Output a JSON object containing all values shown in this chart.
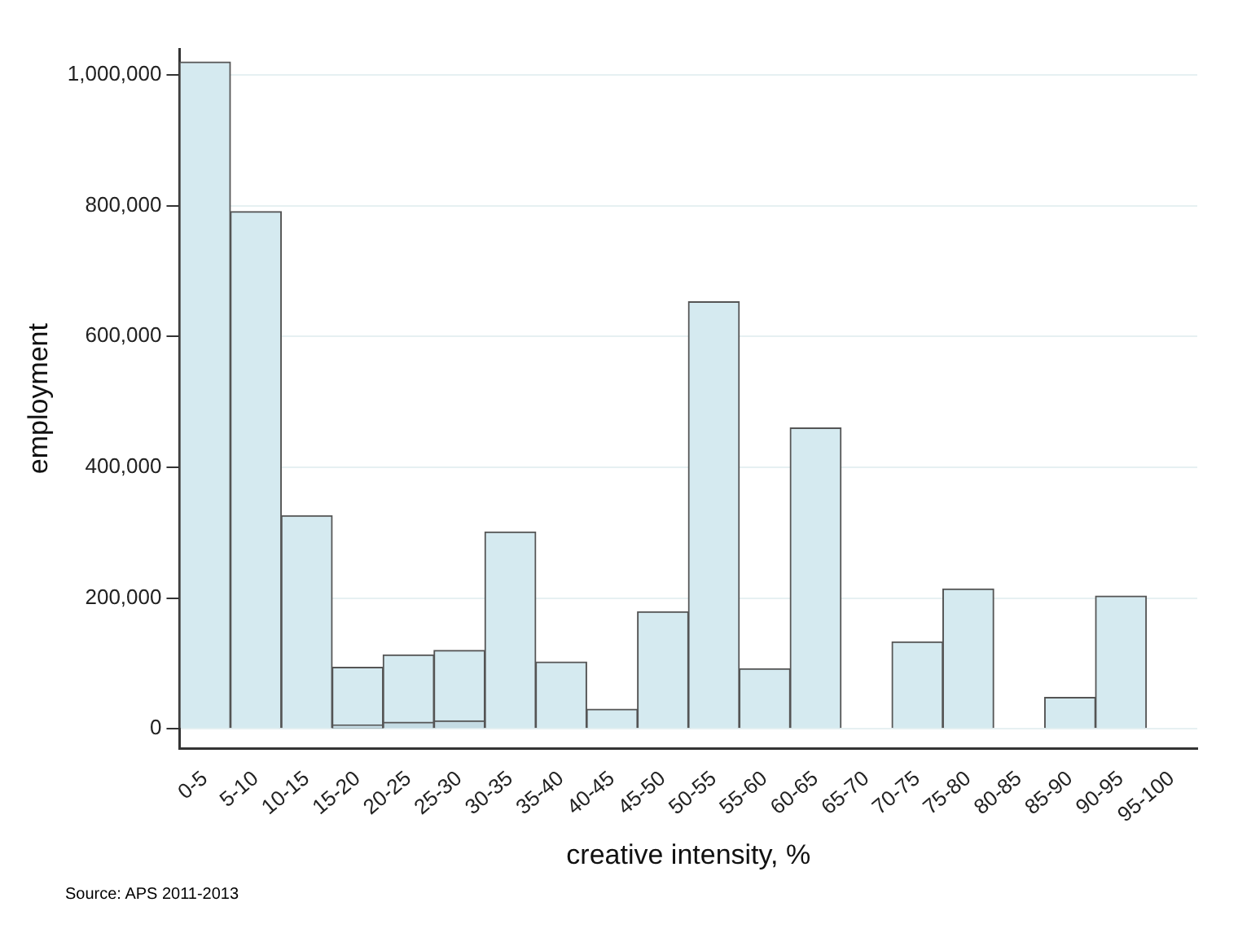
{
  "chart_data": {
    "type": "bar",
    "xlabel": "creative intensity, %",
    "ylabel": "employment",
    "categories": [
      "0-5",
      "5-10",
      "10-15",
      "15-20",
      "20-25",
      "25-30",
      "30-35",
      "35-40",
      "40-45",
      "45-50",
      "50-55",
      "55-60",
      "60-65",
      "65-70",
      "70-75",
      "75-80",
      "80-85",
      "85-90",
      "90-95",
      "95-100"
    ],
    "series": [
      {
        "color": "#d5eaf0",
        "values": [
          1020000,
          791000,
          326000,
          94000,
          113000,
          120000,
          301000,
          102000,
          30000,
          179000,
          653000,
          92000,
          460000,
          null,
          133000,
          214000,
          null,
          48000,
          203000,
          null
        ]
      },
      {
        "color": "#c4dbe3",
        "values": [
          null,
          null,
          null,
          6000,
          10000,
          12000,
          null,
          null,
          null,
          null,
          null,
          null,
          null,
          null,
          null,
          null,
          null,
          null,
          null,
          null
        ]
      }
    ],
    "ylim": [
      -30000,
      1040000
    ],
    "yticks": [
      0,
      {
        "value": 200000,
        "label": "200,000"
      },
      {
        "value": 400000,
        "label": "400,000"
      },
      {
        "value": 600000,
        "label": "600,000"
      },
      {
        "value": 800000,
        "label": "800,000"
      },
      {
        "value": 1000000,
        "label": "1,000,000"
      }
    ],
    "grid": "y",
    "legend": false,
    "annotations": [
      "Source: APS 2011-2013"
    ]
  }
}
